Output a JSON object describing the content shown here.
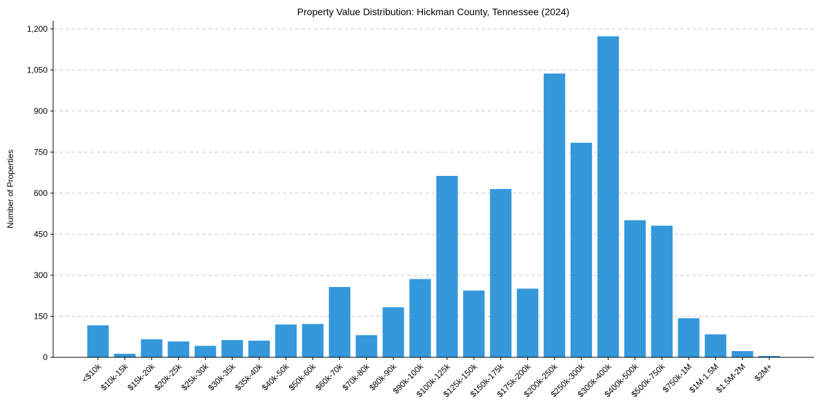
{
  "chart_data": {
    "type": "bar",
    "title": "Property Value Distribution: Hickman County, Tennessee (2024)",
    "xlabel": "",
    "ylabel": "Number of Properties",
    "ylim": [
      0,
      1230
    ],
    "yticks": [
      0,
      150,
      300,
      450,
      600,
      750,
      900,
      1050,
      1200
    ],
    "ytick_labels": [
      "0",
      "150",
      "300",
      "450",
      "600",
      "750",
      "900",
      "1,050",
      "1,200"
    ],
    "grid": "y-dashed",
    "bar_color": "#3498db",
    "categories": [
      "<$10k",
      "$10k-15k",
      "$15k-20k",
      "$20k-25k",
      "$25k-30k",
      "$30k-35k",
      "$35k-40k",
      "$40k-50k",
      "$50k-60k",
      "$60k-70k",
      "$70k-80k",
      "$80k-90k",
      "$90k-100k",
      "$100k-125k",
      "$125k-150k",
      "$150k-175k",
      "$175k-200k",
      "$200k-250k",
      "$250k-300k",
      "$300k-400k",
      "$400k-500k",
      "$500k-750k",
      "$750k-1M",
      "$1M-1.5M",
      "$1.5M-2M",
      "$2M+"
    ],
    "values": [
      117,
      13,
      66,
      58,
      42,
      63,
      61,
      120,
      122,
      257,
      81,
      183,
      286,
      663,
      244,
      615,
      251,
      1037,
      784,
      1173,
      501,
      481,
      143,
      84,
      23,
      5
    ]
  }
}
